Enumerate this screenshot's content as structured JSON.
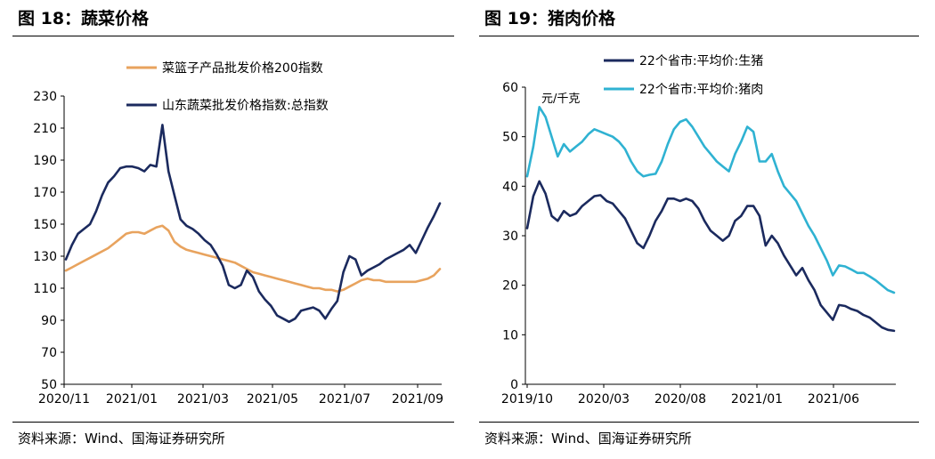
{
  "fig18": {
    "title": "图 18：蔬菜价格",
    "source": "资料来源：Wind、国海证券研究所"
  },
  "fig19": {
    "title": "图 19：猪肉价格",
    "source": "资料来源：Wind、国海证券研究所"
  },
  "chart_data": [
    {
      "type": "line",
      "ylim": [
        50,
        230
      ],
      "y_ticks": [
        50,
        70,
        90,
        110,
        130,
        150,
        170,
        190,
        210,
        230
      ],
      "x_tick_labels": [
        "2020/11",
        "2021/01",
        "2021/03",
        "2021/05",
        "2021/07",
        "2021/09"
      ],
      "legend_position": "top-right",
      "series": [
        {
          "name": "菜篮子产品批发价格200指数",
          "color": "#E8A35E",
          "values": [
            121,
            123,
            125,
            127,
            129,
            131,
            133,
            135,
            138,
            141,
            144,
            145,
            145,
            144,
            146,
            148,
            149,
            146,
            139,
            136,
            134,
            133,
            132,
            131,
            130,
            129,
            128,
            127,
            126,
            124,
            122,
            120,
            119,
            118,
            117,
            116,
            115,
            114,
            113,
            112,
            111,
            110,
            110,
            109,
            109,
            108,
            109,
            111,
            113,
            115,
            116,
            115,
            115,
            114,
            114,
            114,
            114,
            114,
            114,
            115,
            116,
            118,
            122
          ]
        },
        {
          "name": "山东蔬菜批发价格指数:总指数",
          "color": "#1B2A5E",
          "values": [
            128,
            137,
            144,
            147,
            150,
            158,
            168,
            176,
            180,
            185,
            186,
            186,
            185,
            183,
            187,
            186,
            212,
            183,
            168,
            153,
            149,
            147,
            144,
            140,
            137,
            131,
            124,
            112,
            110,
            112,
            121,
            117,
            108,
            103,
            99,
            93,
            91,
            89,
            91,
            96,
            97,
            98,
            96,
            91,
            97,
            102,
            120,
            130,
            128,
            118,
            121,
            123,
            125,
            128,
            130,
            132,
            134,
            137,
            132,
            140,
            148,
            155,
            163
          ]
        }
      ]
    },
    {
      "type": "line",
      "ylim": [
        0,
        60
      ],
      "y_ticks": [
        0,
        10,
        20,
        30,
        40,
        50,
        60
      ],
      "x_tick_labels": [
        "2019/10",
        "2020/03",
        "2020/08",
        "2021/01",
        "2021/06"
      ],
      "unit_label": "元/千克",
      "legend_position": "top-left",
      "series": [
        {
          "name": "22个省市:平均价:生猪",
          "color": "#1B2A5E",
          "values": [
            31.5,
            38,
            41,
            38.5,
            34,
            33,
            35,
            34,
            34.5,
            36,
            37,
            38,
            38.2,
            37,
            36.5,
            35,
            33.5,
            31,
            28.5,
            27.5,
            30,
            33,
            35,
            37.5,
            37.5,
            37,
            37.5,
            37,
            35.5,
            33,
            31,
            30,
            29,
            30,
            33,
            34,
            36,
            36,
            34,
            28,
            30,
            28.5,
            26,
            24,
            22,
            23.5,
            21,
            19,
            16,
            14.5,
            13,
            16,
            15.8,
            15.2,
            14.8,
            14,
            13.5,
            12.5,
            11.5,
            11,
            10.8
          ]
        },
        {
          "name": "22个省市:平均价:猪肉",
          "color": "#2FB2D2",
          "values": [
            42,
            48,
            56,
            54,
            50,
            46,
            48.5,
            47,
            48,
            49,
            50.5,
            51.5,
            51,
            50.5,
            50,
            49,
            47.5,
            45,
            43,
            42,
            42.3,
            42.5,
            45,
            48.5,
            51.5,
            53,
            53.5,
            52,
            50,
            48,
            46.5,
            45,
            44,
            43,
            46.5,
            49,
            52,
            51,
            45,
            45,
            46.5,
            43,
            40,
            38.5,
            37,
            34.5,
            32,
            30,
            27.5,
            25,
            22,
            24,
            23.8,
            23.2,
            22.5,
            22.5,
            21.8,
            21,
            20,
            19,
            18.5
          ]
        }
      ]
    }
  ]
}
